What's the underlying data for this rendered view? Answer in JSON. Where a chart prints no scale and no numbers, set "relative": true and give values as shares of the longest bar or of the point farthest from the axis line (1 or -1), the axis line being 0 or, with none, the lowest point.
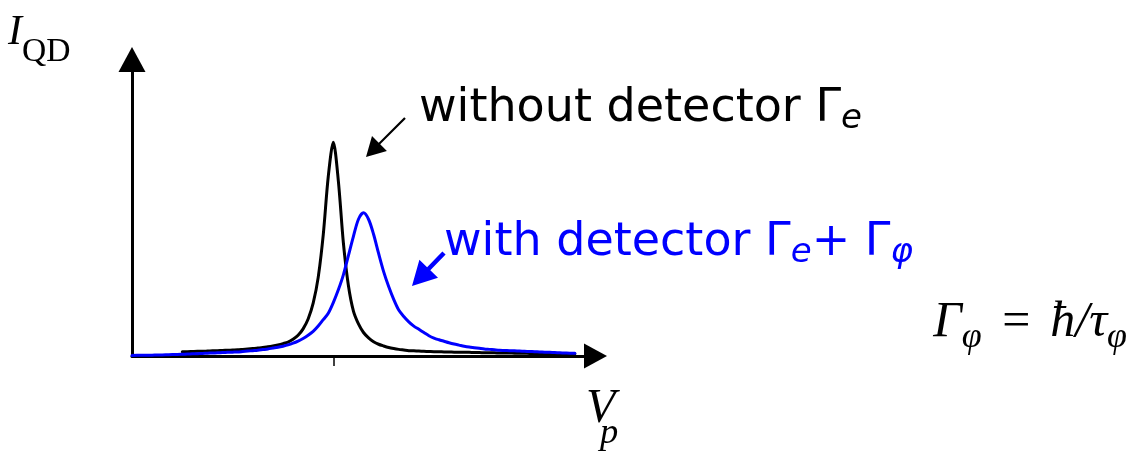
{
  "chart_data": {
    "type": "line",
    "relative": true,
    "xlabel": "V$_{p}$",
    "ylabel": "I$_{QD}$",
    "categories": [
      null,
      null,
      null,
      null,
      null,
      null,
      null,
      null,
      null,
      null,
      null,
      null,
      null,
      null,
      null,
      null,
      null,
      null,
      null,
      null,
      null,
      null,
      null,
      null,
      null,
      null,
      null,
      null,
      null,
      null,
      null,
      null,
      null,
      null,
      null,
      null,
      null,
      null,
      null,
      null,
      null,
      null,
      null,
      null,
      null,
      null,
      null,
      null,
      null,
      null,
      null,
      null,
      null,
      null,
      null,
      null,
      null,
      null,
      null,
      null,
      null,
      null,
      null,
      null,
      null,
      null,
      null,
      null,
      null,
      null,
      null,
      null,
      null,
      null,
      null,
      null,
      null,
      null,
      null,
      null,
      null,
      null,
      null,
      null,
      null,
      null,
      null,
      null,
      null,
      null,
      null,
      null,
      null
    ],
    "series": [
      {
        "name": "without detector Γ$_{e}$",
        "color": "#000000",
        "values": [
          null,
          null,
          null,
          null,
          null,
          null,
          null,
          null,
          null,
          null,
          0.02,
          0.02,
          0.021,
          0.022,
          0.022,
          0.023,
          0.024,
          0.025,
          0.026,
          0.027,
          0.028,
          0.029,
          0.031,
          0.033,
          0.035,
          0.037,
          0.04,
          0.043,
          0.047,
          0.052,
          0.058,
          0.065,
          0.078,
          0.097,
          0.127,
          0.173,
          0.247,
          0.368,
          0.567,
          0.84,
          1,
          0.82,
          0.53,
          0.33,
          0.21,
          0.15,
          0.11,
          0.085,
          0.067,
          0.055,
          0.047,
          0.04,
          0.035,
          0.031,
          0.028,
          0.025,
          0.024,
          0.023,
          0.022,
          0.021,
          0.02,
          0.02,
          0.019,
          0.019,
          0.018,
          0.018,
          0.017,
          0.017,
          0.016,
          0.016,
          0.015,
          0.015,
          0.015,
          0.014,
          0.014,
          0.014,
          0.013,
          0.013,
          0.013,
          0.012,
          0.012,
          0.012,
          0.012,
          0.011,
          0.011,
          0.011,
          0.011,
          0.01,
          0.01,
          null,
          null,
          null,
          null
        ]
      },
      {
        "name": "with detector Γ$_{e}$+ Γ$_{φ}$",
        "color": "#0000ff",
        "values": [
          0.002,
          0.003,
          0.003,
          0.004,
          0.004,
          0.005,
          0.005,
          0.006,
          0.007,
          0.007,
          0.008,
          0.009,
          0.01,
          0.011,
          0.012,
          0.013,
          0.014,
          0.015,
          0.016,
          0.017,
          0.018,
          0.019,
          0.021,
          0.023,
          0.025,
          0.027,
          0.03,
          0.033,
          0.037,
          0.041,
          0.046,
          0.052,
          0.06,
          0.07,
          0.082,
          0.097,
          0.115,
          0.14,
          0.17,
          0.2,
          0.25,
          0.31,
          0.38,
          0.47,
          0.56,
          0.64,
          0.67,
          0.64,
          0.57,
          0.48,
          0.395,
          0.325,
          0.265,
          0.215,
          0.185,
          0.16,
          0.14,
          0.125,
          0.11,
          0.095,
          0.084,
          0.076,
          0.069,
          0.062,
          0.056,
          0.051,
          0.046,
          0.042,
          0.039,
          0.036,
          0.033,
          0.031,
          0.029,
          0.027,
          0.026,
          0.025,
          0.024,
          0.023,
          0.022,
          0.021,
          0.02,
          0.019,
          0.018,
          0.017,
          0.016,
          0.015,
          0.014,
          0.013,
          0.013,
          null,
          null,
          null,
          null
        ]
      }
    ],
    "annotations": [
      "Γ$_{φ}$ = ħ/τ$_{φ}$"
    ],
    "legend": "top right",
    "grid": false,
    "marker": "none",
    "tick_labels": false
  }
}
